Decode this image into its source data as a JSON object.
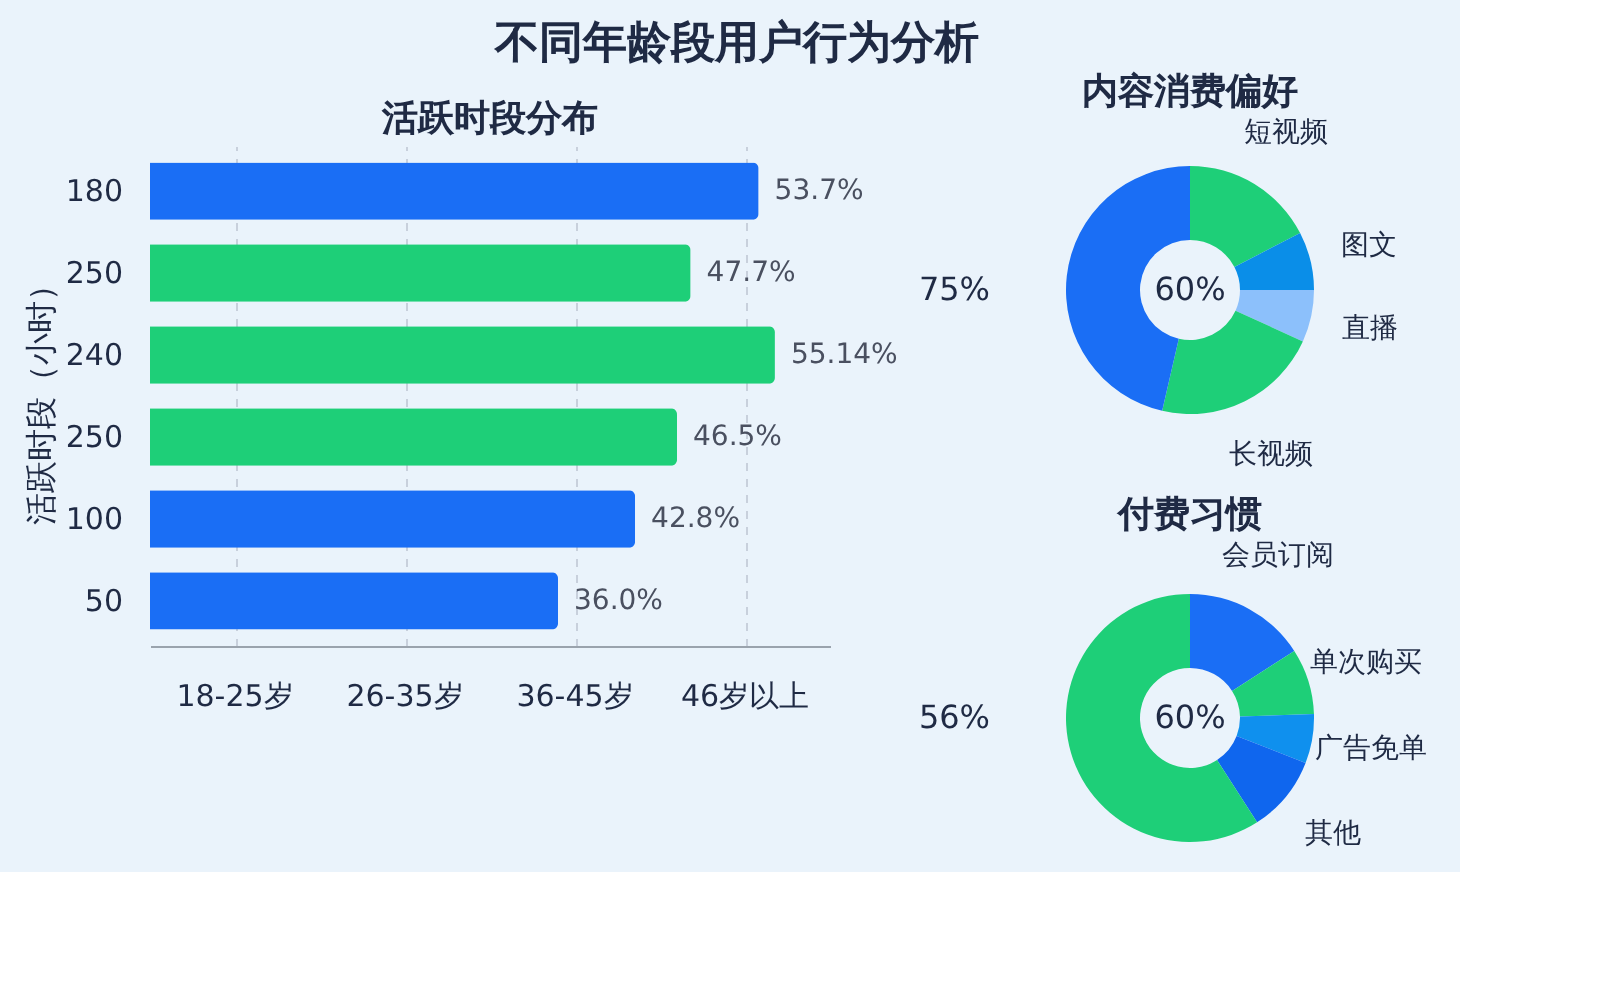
{
  "chart_data": [
    {
      "type": "bar",
      "orientation": "horizontal",
      "title": "不同年龄段用户行为分析",
      "subtitle": "活跃时段分布",
      "ylabel": "活跃时段（小时）",
      "categories": [
        "180",
        "250",
        "240",
        "250",
        "100",
        "50"
      ],
      "values": [
        53.7,
        47.7,
        55.14,
        46.5,
        42.8,
        36.0
      ],
      "colors": [
        "#1a6ef5",
        "#1ecf78",
        "#1ecf78",
        "#1ecf78",
        "#1a6ef5",
        "#1a6ef5"
      ],
      "value_labels": [
        "53.7%",
        "47.7%",
        "55.14%",
        "46.5%",
        "42.8%",
        "36.0%"
      ],
      "xlim": [
        0,
        60
      ],
      "xticks": [
        {
          "value": 7.5,
          "label": null
        },
        {
          "value": 22.5,
          "label": null
        },
        {
          "value": 37.5,
          "label": null
        },
        {
          "value": 52.5,
          "label": null
        }
      ],
      "annotations": [
        "18-25岁",
        "26-35岁",
        "36-45岁",
        "46岁以上"
      ],
      "tick_labels": "y",
      "grid": "x"
    },
    {
      "type": "donut",
      "title": "内容消费偏好",
      "categories": [
        "短视频",
        "图文",
        "直播",
        "长视频",
        null
      ],
      "values": [
        17.4,
        7.6,
        6.8,
        21.8,
        46.4
      ],
      "colors": [
        "#1ecf78",
        "#0a8ee8",
        "#8cc0fb",
        "#1ecf78",
        "#1a6ef5"
      ],
      "annotations": [
        "60%",
        "75%"
      ]
    },
    {
      "type": "donut",
      "title": "付费习惯",
      "categories": [
        "会员订阅",
        "单次购买",
        "广告免单",
        "其他",
        null
      ],
      "values": [
        15.9,
        8.6,
        6.4,
        10.0,
        59.1
      ],
      "colors": [
        "#1a6ef5",
        "#1ecf78",
        "#0f90ee",
        "#0f66ee",
        "#1ecf78"
      ],
      "annotations": [
        "60%",
        "56%"
      ]
    }
  ]
}
